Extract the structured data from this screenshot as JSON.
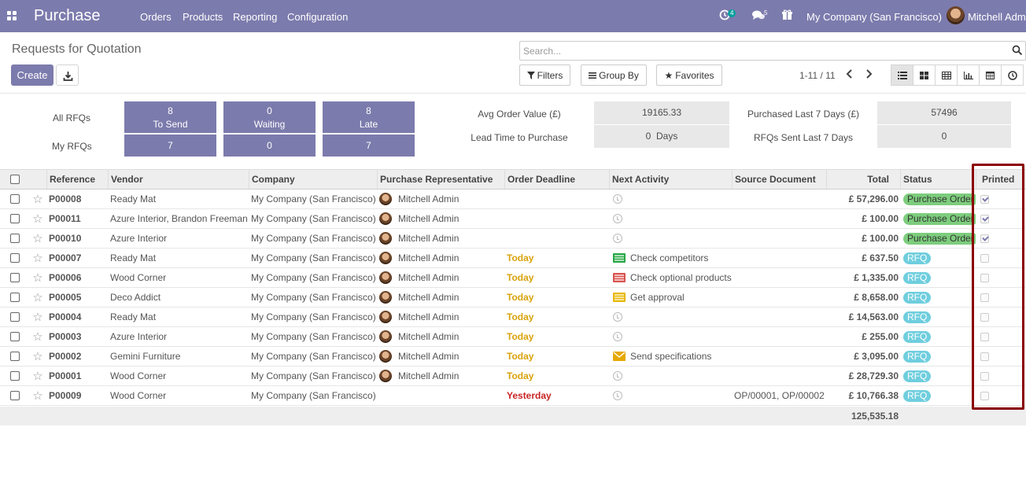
{
  "navbar": {
    "app_name": "Purchase",
    "menus": [
      "Orders",
      "Products",
      "Reporting",
      "Configuration"
    ],
    "activity_count": "4",
    "message_count": "5",
    "company": "My Company (San Francisco)",
    "user": "Mitchell Admin"
  },
  "control_panel": {
    "breadcrumb": "Requests for Quotation",
    "create_label": "Create",
    "search_placeholder": "Search...",
    "filters_label": "Filters",
    "group_by_label": "Group By",
    "favorites_label": "Favorites",
    "pager": "1-11 / 11"
  },
  "dashboard": {
    "all_rfqs_label": "All RFQs",
    "my_rfqs_label": "My RFQs",
    "to_send": {
      "count": "8",
      "label": "To Send",
      "mine": "7"
    },
    "waiting": {
      "count": "0",
      "label": "Waiting",
      "mine": "0"
    },
    "late": {
      "count": "8",
      "label": "Late",
      "mine": "7"
    },
    "avg_order_value_label": "Avg Order Value (£)",
    "avg_order_value": "19165.33",
    "lead_time_label": "Lead Time to Purchase",
    "lead_time": "0  Days",
    "purchased_last_7_label": "Purchased Last 7 Days (£)",
    "purchased_last_7": "57496",
    "rfqs_sent_label": "RFQs Sent Last 7 Days",
    "rfqs_sent": "0"
  },
  "table": {
    "columns": {
      "reference": "Reference",
      "vendor": "Vendor",
      "company": "Company",
      "representative": "Purchase Representative",
      "deadline": "Order Deadline",
      "activity": "Next Activity",
      "source": "Source Document",
      "total": "Total",
      "status": "Status",
      "printed": "Printed"
    },
    "rows": [
      {
        "ref": "P00008",
        "vendor": "Ready Mat",
        "company": "My Company (San Francisco)",
        "rep": "Mitchell Admin",
        "deadline": "",
        "activity": "",
        "activity_icon": "clock-icon",
        "source": "",
        "total": "£ 57,296.00",
        "status": "Purchase Order",
        "printed": true
      },
      {
        "ref": "P00011",
        "vendor": "Azure Interior, Brandon Freeman",
        "company": "My Company (San Francisco)",
        "rep": "Mitchell Admin",
        "deadline": "",
        "activity": "",
        "activity_icon": "clock-icon",
        "source": "",
        "total": "£ 100.00",
        "status": "Purchase Order",
        "printed": true
      },
      {
        "ref": "P00010",
        "vendor": "Azure Interior",
        "company": "My Company (San Francisco)",
        "rep": "Mitchell Admin",
        "deadline": "",
        "activity": "",
        "activity_icon": "clock-icon",
        "source": "",
        "total": "£ 100.00",
        "status": "Purchase Order",
        "printed": true
      },
      {
        "ref": "P00007",
        "vendor": "Ready Mat",
        "company": "My Company (San Francisco)",
        "rep": "Mitchell Admin",
        "deadline": "Today",
        "activity": "Check competitors",
        "activity_icon": "todo-green-icon",
        "source": "",
        "total": "£ 637.50",
        "status": "RFQ",
        "printed": false
      },
      {
        "ref": "P00006",
        "vendor": "Wood Corner",
        "company": "My Company (San Francisco)",
        "rep": "Mitchell Admin",
        "deadline": "Today",
        "activity": "Check optional products",
        "activity_icon": "todo-red-icon",
        "source": "",
        "total": "£ 1,335.00",
        "status": "RFQ",
        "printed": false
      },
      {
        "ref": "P00005",
        "vendor": "Deco Addict",
        "company": "My Company (San Francisco)",
        "rep": "Mitchell Admin",
        "deadline": "Today",
        "activity": "Get approval",
        "activity_icon": "todo-yellow-icon",
        "source": "",
        "total": "£ 8,658.00",
        "status": "RFQ",
        "printed": false
      },
      {
        "ref": "P00004",
        "vendor": "Ready Mat",
        "company": "My Company (San Francisco)",
        "rep": "Mitchell Admin",
        "deadline": "Today",
        "activity": "",
        "activity_icon": "clock-icon",
        "source": "",
        "total": "£ 14,563.00",
        "status": "RFQ",
        "printed": false
      },
      {
        "ref": "P00003",
        "vendor": "Azure Interior",
        "company": "My Company (San Francisco)",
        "rep": "Mitchell Admin",
        "deadline": "Today",
        "activity": "",
        "activity_icon": "clock-icon",
        "source": "",
        "total": "£ 255.00",
        "status": "RFQ",
        "printed": false
      },
      {
        "ref": "P00002",
        "vendor": "Gemini Furniture",
        "company": "My Company (San Francisco)",
        "rep": "Mitchell Admin",
        "deadline": "Today",
        "activity": "Send specifications",
        "activity_icon": "envelope-icon",
        "source": "",
        "total": "£ 3,095.00",
        "status": "RFQ",
        "printed": false
      },
      {
        "ref": "P00001",
        "vendor": "Wood Corner",
        "company": "My Company (San Francisco)",
        "rep": "Mitchell Admin",
        "deadline": "Today",
        "activity": "",
        "activity_icon": "clock-icon",
        "source": "",
        "total": "£ 28,729.30",
        "status": "RFQ",
        "printed": false
      },
      {
        "ref": "P00009",
        "vendor": "Wood Corner",
        "company": "My Company (San Francisco)",
        "rep": "",
        "deadline": "Yesterday",
        "activity": "",
        "activity_icon": "clock-icon",
        "source": "OP/00001, OP/00002",
        "total": "£ 10,766.38",
        "status": "RFQ",
        "printed": false
      }
    ],
    "footer_total": "125,535.18"
  },
  "colors": {
    "brand": "#7c7bad",
    "today": "#d9a30d",
    "late": "#c92424",
    "po_badge": "#7dcd7d",
    "rfq_badge": "#6fcede",
    "highlight": "#8b0000"
  }
}
